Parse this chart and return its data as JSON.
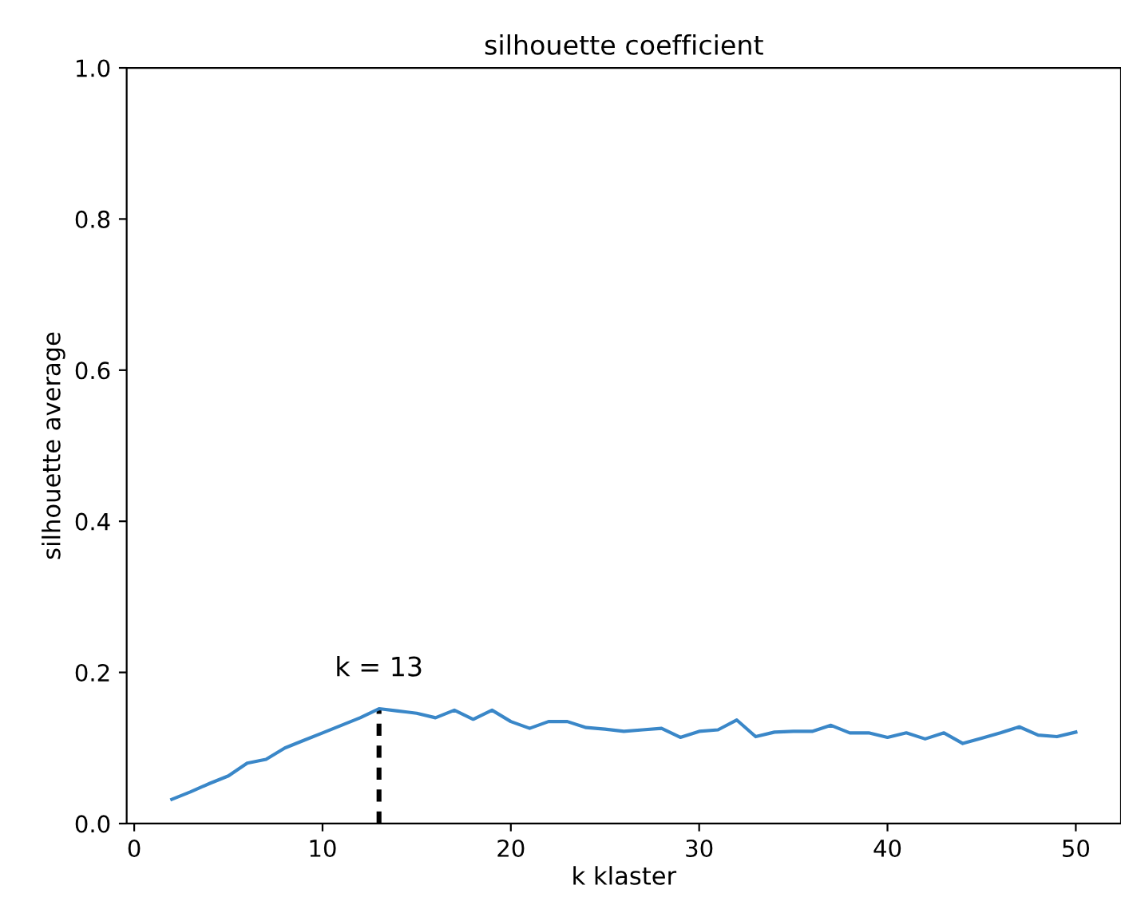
{
  "chart_data": {
    "type": "line",
    "title": "silhouette coefficient",
    "xlabel": "k klaster",
    "ylabel": "silhouette average",
    "x": [
      2,
      3,
      4,
      5,
      6,
      7,
      8,
      9,
      10,
      11,
      12,
      13,
      14,
      15,
      16,
      17,
      18,
      19,
      20,
      21,
      22,
      23,
      24,
      25,
      26,
      27,
      28,
      29,
      30,
      31,
      32,
      33,
      34,
      35,
      36,
      37,
      38,
      39,
      40,
      41,
      42,
      43,
      44,
      45,
      46,
      47,
      48,
      49,
      50
    ],
    "series": [
      {
        "color": "#3a87c8",
        "line_style": "solid",
        "values": [
          0.032,
          0.042,
          0.053,
          0.063,
          0.08,
          0.085,
          0.1,
          0.11,
          0.12,
          0.13,
          0.14,
          0.152,
          0.149,
          0.146,
          0.14,
          0.15,
          0.138,
          0.15,
          0.135,
          0.126,
          0.135,
          0.135,
          0.127,
          0.125,
          0.122,
          0.124,
          0.126,
          0.114,
          0.122,
          0.124,
          0.137,
          0.115,
          0.121,
          0.122,
          0.122,
          0.13,
          0.12,
          0.12,
          0.114,
          0.12,
          0.112,
          0.12,
          0.106,
          0.113,
          0.12,
          0.128,
          0.117,
          0.115,
          0.121
        ]
      },
      {
        "color": "#000000",
        "line_style": "dashed",
        "x": [
          13,
          13
        ],
        "values": [
          0,
          0.152
        ]
      }
    ],
    "annotations": [
      {
        "text": "k = 13",
        "x": 13,
        "y": 0.152
      }
    ],
    "xlim": [
      -0.4,
      52.4
    ],
    "ylim": [
      0,
      1.0
    ],
    "xticks": [
      0,
      10,
      20,
      30,
      40,
      50
    ],
    "yticks": [
      {
        "value": 0,
        "label": "0.0"
      },
      {
        "value": 0.2,
        "label": "0.2"
      },
      {
        "value": 0.4,
        "label": "0.4"
      },
      {
        "value": 0.6,
        "label": "0.6"
      },
      {
        "value": 0.8,
        "label": "0.8"
      },
      {
        "value": 1.0,
        "label": "1.0"
      }
    ],
    "grid": false,
    "marker": "none"
  }
}
